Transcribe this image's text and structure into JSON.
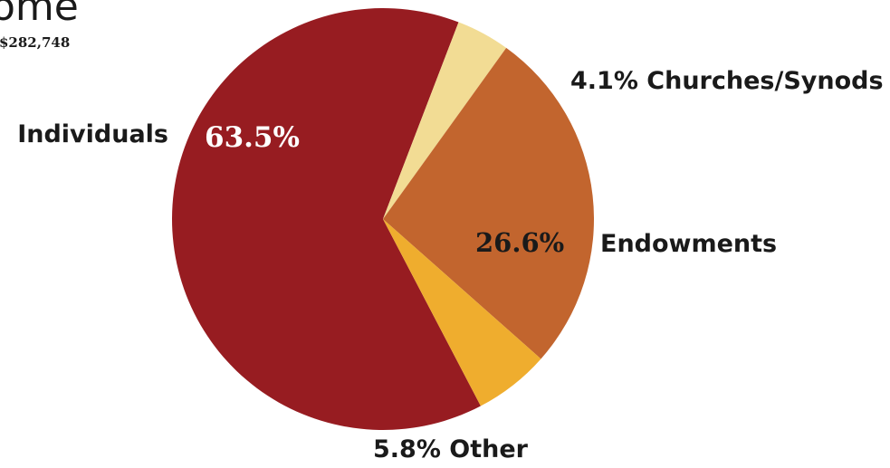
{
  "header": {
    "title_partial": "ome",
    "total": "$282,748"
  },
  "chart_data": {
    "type": "pie",
    "title": "",
    "slices": [
      {
        "name": "Individuals",
        "value": 63.5,
        "label": "63.5%",
        "color": "#971c21"
      },
      {
        "name": "Churches/Synods",
        "value": 4.1,
        "label": "4.1%",
        "color": "#f2dc94"
      },
      {
        "name": "Endowments",
        "value": 26.6,
        "label": "26.6%",
        "color": "#c2652e"
      },
      {
        "name": "Other",
        "value": 5.8,
        "label": "5.8%",
        "color": "#efad2e"
      }
    ]
  }
}
